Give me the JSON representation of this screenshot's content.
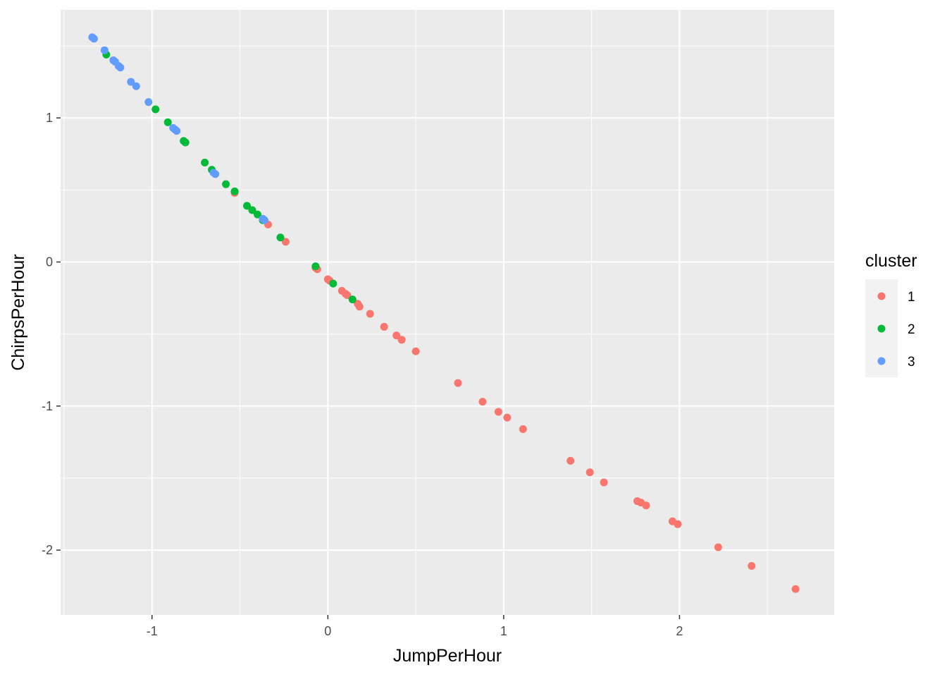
{
  "chart_data": {
    "type": "scatter",
    "title": "",
    "xlabel": "JumpPerHour",
    "ylabel": "ChirpsPerHour",
    "xlim": [
      -1.52,
      2.88
    ],
    "ylim": [
      -2.45,
      1.75
    ],
    "x_ticks": [
      -1,
      0,
      1,
      2
    ],
    "y_ticks": [
      -2,
      -1,
      0,
      1
    ],
    "x_tick_labels": [
      "-1",
      "0",
      "1",
      "2"
    ],
    "y_tick_labels": [
      "-2",
      "-1",
      "0",
      "1"
    ],
    "grid": true,
    "background": "#ebebeb",
    "legend": {
      "title": "cluster",
      "position": "right",
      "entries": [
        {
          "label": "1",
          "color": "#f8766d"
        },
        {
          "label": "2",
          "color": "#00ba38"
        },
        {
          "label": "3",
          "color": "#619cff"
        }
      ]
    },
    "series": [
      {
        "name": "1",
        "color": "#f8766d",
        "points": [
          [
            -0.53,
            0.48
          ],
          [
            -0.34,
            0.26
          ],
          [
            -0.24,
            0.14
          ],
          [
            -0.07,
            -0.04
          ],
          [
            -0.06,
            -0.05
          ],
          [
            0.0,
            -0.12
          ],
          [
            0.01,
            -0.13
          ],
          [
            0.08,
            -0.2
          ],
          [
            0.1,
            -0.22
          ],
          [
            0.11,
            -0.23
          ],
          [
            0.17,
            -0.29
          ],
          [
            0.18,
            -0.31
          ],
          [
            0.24,
            -0.36
          ],
          [
            0.32,
            -0.45
          ],
          [
            0.39,
            -0.51
          ],
          [
            0.42,
            -0.54
          ],
          [
            0.5,
            -0.62
          ],
          [
            0.74,
            -0.84
          ],
          [
            0.88,
            -0.97
          ],
          [
            0.97,
            -1.04
          ],
          [
            1.02,
            -1.08
          ],
          [
            1.11,
            -1.16
          ],
          [
            1.38,
            -1.38
          ],
          [
            1.49,
            -1.46
          ],
          [
            1.57,
            -1.53
          ],
          [
            1.76,
            -1.66
          ],
          [
            1.78,
            -1.67
          ],
          [
            1.81,
            -1.69
          ],
          [
            1.96,
            -1.8
          ],
          [
            1.99,
            -1.82
          ],
          [
            2.22,
            -1.98
          ],
          [
            2.41,
            -2.11
          ],
          [
            2.66,
            -2.27
          ]
        ]
      },
      {
        "name": "2",
        "color": "#00ba38",
        "points": [
          [
            -1.26,
            1.44
          ],
          [
            -0.98,
            1.06
          ],
          [
            -0.91,
            0.97
          ],
          [
            -0.82,
            0.84
          ],
          [
            -0.81,
            0.83
          ],
          [
            -0.7,
            0.69
          ],
          [
            -0.66,
            0.64
          ],
          [
            -0.58,
            0.54
          ],
          [
            -0.53,
            0.49
          ],
          [
            -0.46,
            0.39
          ],
          [
            -0.43,
            0.36
          ],
          [
            -0.4,
            0.33
          ],
          [
            -0.37,
            0.29
          ],
          [
            -0.27,
            0.17
          ],
          [
            -0.07,
            -0.03
          ],
          [
            0.03,
            -0.15
          ],
          [
            0.14,
            -0.26
          ]
        ]
      },
      {
        "name": "3",
        "color": "#619cff",
        "points": [
          [
            -1.34,
            1.56
          ],
          [
            -1.33,
            1.55
          ],
          [
            -1.27,
            1.47
          ],
          [
            -1.22,
            1.4
          ],
          [
            -1.21,
            1.39
          ],
          [
            -1.19,
            1.36
          ],
          [
            -1.18,
            1.35
          ],
          [
            -1.12,
            1.25
          ],
          [
            -1.09,
            1.22
          ],
          [
            -1.02,
            1.11
          ],
          [
            -0.88,
            0.93
          ],
          [
            -0.87,
            0.92
          ],
          [
            -0.86,
            0.91
          ],
          [
            -0.65,
            0.62
          ],
          [
            -0.64,
            0.61
          ],
          [
            -0.37,
            0.3
          ],
          [
            -0.36,
            0.29
          ]
        ]
      }
    ]
  }
}
